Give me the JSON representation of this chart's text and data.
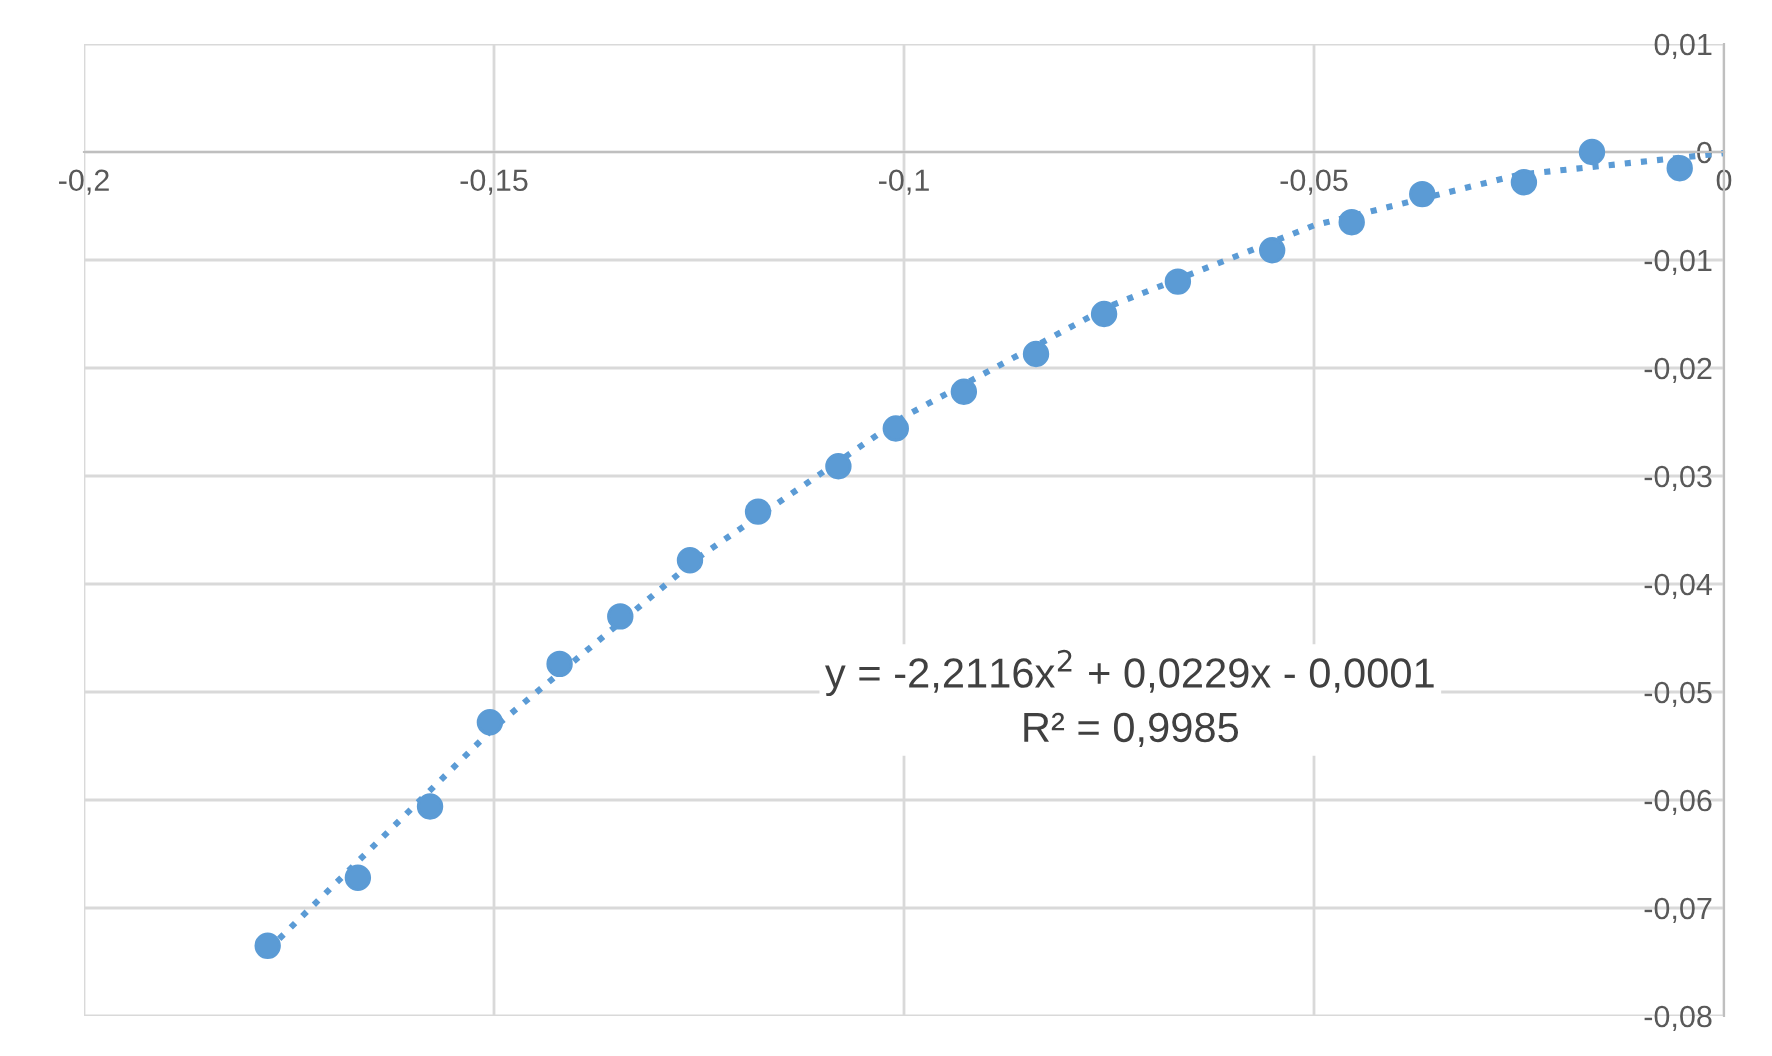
{
  "chart_data": {
    "type": "scatter",
    "xlim": [
      -0.2,
      0
    ],
    "ylim": [
      -0.08,
      0.01
    ],
    "xticks": [
      {
        "value": -0.2,
        "label": "-0,2"
      },
      {
        "value": -0.15,
        "label": "-0,15"
      },
      {
        "value": -0.1,
        "label": "-0,1"
      },
      {
        "value": -0.05,
        "label": "-0,05"
      },
      {
        "value": 0,
        "label": "0"
      }
    ],
    "yticks": [
      {
        "value": 0.01,
        "label": "0,01"
      },
      {
        "value": 0,
        "label": "0"
      },
      {
        "value": -0.01,
        "label": "-0,01"
      },
      {
        "value": -0.02,
        "label": "-0,02"
      },
      {
        "value": -0.03,
        "label": "-0,03"
      },
      {
        "value": -0.04,
        "label": "-0,04"
      },
      {
        "value": -0.05,
        "label": "-0,05"
      },
      {
        "value": -0.06,
        "label": "-0,06"
      },
      {
        "value": -0.07,
        "label": "-0,07"
      },
      {
        "value": -0.08,
        "label": "-0,08"
      }
    ],
    "grid": true,
    "legend": false,
    "series": [
      {
        "color": "#5b9bd5",
        "marker": "circle",
        "x": [
          -0.1776,
          -0.1666,
          -0.1578,
          -0.1505,
          -0.142,
          -0.1346,
          -0.1261,
          -0.1178,
          -0.108,
          -0.101,
          -0.0927,
          -0.0839,
          -0.0756,
          -0.0666,
          -0.0551,
          -0.0454,
          -0.0368,
          -0.0244,
          -0.0161,
          -0.0054
        ],
        "values": [
          -0.0735,
          -0.0672,
          -0.0606,
          -0.0528,
          -0.0474,
          -0.043,
          -0.0378,
          -0.0333,
          -0.0291,
          -0.0256,
          -0.0222,
          -0.0187,
          -0.015,
          -0.012,
          -0.0091,
          -0.0065,
          -0.0039,
          -0.0028,
          0.0,
          -0.0015
        ]
      },
      {
        "type": "line",
        "color": "#5b9bd5",
        "marker": "none",
        "line_style": "dotted",
        "x": [
          -0.1776,
          -0.15,
          -0.125,
          -0.1,
          -0.075,
          -0.05,
          -0.025,
          0
        ],
        "values": [
          -0.0739,
          -0.0533,
          -0.0375,
          -0.0245,
          -0.0143,
          -0.0068,
          -0.0021,
          -0.0001
        ]
      }
    ],
    "annotations": [
      "y = -2,2116x$^{2}$ + 0,0229x - 0,0001",
      "R² = 0,9985"
    ]
  }
}
